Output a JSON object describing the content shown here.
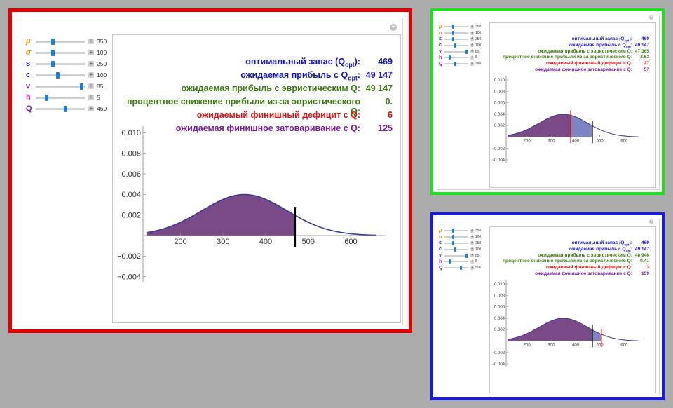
{
  "colors": {
    "background": "#acacac",
    "mu": "#e8920a",
    "sigma": "#e8920a",
    "s": "#1515c8",
    "c": "#1515c8",
    "v": "#7a1b9a",
    "h": "#e020c8",
    "Q": "#7a1b9a",
    "blue": "#1515c8",
    "green": "#3a7a10",
    "red": "#e01010",
    "purple": "#7a1b9a",
    "fill_left": "#7a4a86",
    "fill_right": "#7d84c4",
    "curve": "#3a3a98"
  },
  "common": {
    "labels": {
      "qopt": "оптимальный запас (Q",
      "qopt_sub": "opt",
      "qopt_end": "):",
      "profit_opt": "ожидаемая прибыль с Q",
      "profit_opt_sub": "opt",
      "profit_opt_end": ":",
      "profit_heur": "ожидаемая прибыль с эвристическим Q:",
      "reduction": "процентное снижение прибыли из-за эвристического Q:",
      "shortage": "ожидаемый финишный дефицит с Q:",
      "overstock": "ожидаемая финишное затоваривание с Q:"
    }
  },
  "chart_data": [
    {
      "panel": "red (main)",
      "type": "area",
      "frame_color": "#e00000",
      "description_none": "",
      "sliders": [
        {
          "name": "μ",
          "value": "350",
          "frac": 0.34
        },
        {
          "name": "σ",
          "value": "100",
          "frac": 0.34
        },
        {
          "name": "s",
          "value": "250",
          "frac": 0.34
        },
        {
          "name": "c",
          "value": "100",
          "frac": 0.45
        },
        {
          "name": "v",
          "value": "85",
          "frac": 0.97
        },
        {
          "name": "h",
          "value": "5",
          "frac": 0.2
        },
        {
          "name": "Q",
          "value": "469",
          "frac": 0.62
        }
      ],
      "stats": {
        "qopt": "469",
        "profit_opt": "49 147",
        "profit_heur": "49 147",
        "reduction": "0.",
        "shortage": "6",
        "overstock": "125"
      },
      "mu": 350,
      "sigma": 100,
      "Q": 469,
      "Q_opt": 469,
      "xlim": [
        120,
        680
      ],
      "ylim": [
        -0.0045,
        0.0105
      ],
      "xticks": [
        "200",
        "300",
        "400",
        "500",
        "600"
      ],
      "yticks": [
        "0.010",
        "0.008",
        "0.006",
        "0.004",
        "0.002",
        "−0.002",
        "−0.004"
      ],
      "xtick_values": [
        200,
        300,
        400,
        500,
        600
      ],
      "ytick_values": [
        0.01,
        0.008,
        0.006,
        0.004,
        0.002,
        -0.002,
        -0.004
      ]
    },
    {
      "panel": "green",
      "type": "area",
      "frame_color": "#22dd22",
      "sliders": [
        {
          "name": "μ",
          "value": "350",
          "frac": 0.34
        },
        {
          "name": "σ",
          "value": "100",
          "frac": 0.34
        },
        {
          "name": "s",
          "value": "250",
          "frac": 0.34
        },
        {
          "name": "c",
          "value": "100",
          "frac": 0.45
        },
        {
          "name": "v",
          "value": "85",
          "frac": 0.97
        },
        {
          "name": "h",
          "value": "5",
          "frac": 0.2
        },
        {
          "name": "Q",
          "value": "380",
          "frac": 0.45
        }
      ],
      "stats": {
        "qopt": "469",
        "profit_opt": "49 147",
        "profit_heur": "47 365",
        "reduction": "3.62",
        "shortage": "27",
        "overstock": "57"
      },
      "mu": 350,
      "sigma": 100,
      "Q": 380,
      "Q_opt": 469,
      "xlim": [
        120,
        680
      ],
      "ylim": [
        -0.0045,
        0.0105
      ],
      "xticks": [
        "200",
        "300",
        "400",
        "500",
        "600"
      ],
      "yticks": [
        "0.010",
        "0.008",
        "0.006",
        "0.004",
        "0.002",
        "−0.002",
        "−0.004"
      ],
      "xtick_values": [
        200,
        300,
        400,
        500,
        600
      ],
      "ytick_values": [
        0.01,
        0.008,
        0.006,
        0.004,
        0.002,
        -0.002,
        -0.004
      ]
    },
    {
      "panel": "blue",
      "type": "area",
      "frame_color": "#1a1adc",
      "sliders": [
        {
          "name": "μ",
          "value": "350",
          "frac": 0.34
        },
        {
          "name": "σ",
          "value": "100",
          "frac": 0.34
        },
        {
          "name": "s",
          "value": "250",
          "frac": 0.34
        },
        {
          "name": "c",
          "value": "100",
          "frac": 0.45
        },
        {
          "name": "v",
          "value": "85",
          "frac": 0.97
        },
        {
          "name": "h",
          "value": "5",
          "frac": 0.2
        },
        {
          "name": "Q",
          "value": "506",
          "frac": 0.7
        }
      ],
      "stats": {
        "qopt": "469",
        "profit_opt": "49 147",
        "profit_heur": "48 946",
        "reduction": "0.41",
        "shortage": "3",
        "overstock": "159"
      },
      "mu": 350,
      "sigma": 100,
      "Q": 506,
      "Q_opt": 469,
      "xlim": [
        120,
        680
      ],
      "ylim": [
        -0.0045,
        0.0105
      ],
      "xticks": [
        "200",
        "300",
        "400",
        "500",
        "600"
      ],
      "yticks": [
        "0.010",
        "0.008",
        "0.006",
        "0.004",
        "0.002",
        "−0.002",
        "−0.004"
      ],
      "xtick_values": [
        200,
        300,
        400,
        500,
        600
      ],
      "ytick_values": [
        0.01,
        0.008,
        0.006,
        0.004,
        0.002,
        -0.002,
        -0.004
      ]
    }
  ]
}
